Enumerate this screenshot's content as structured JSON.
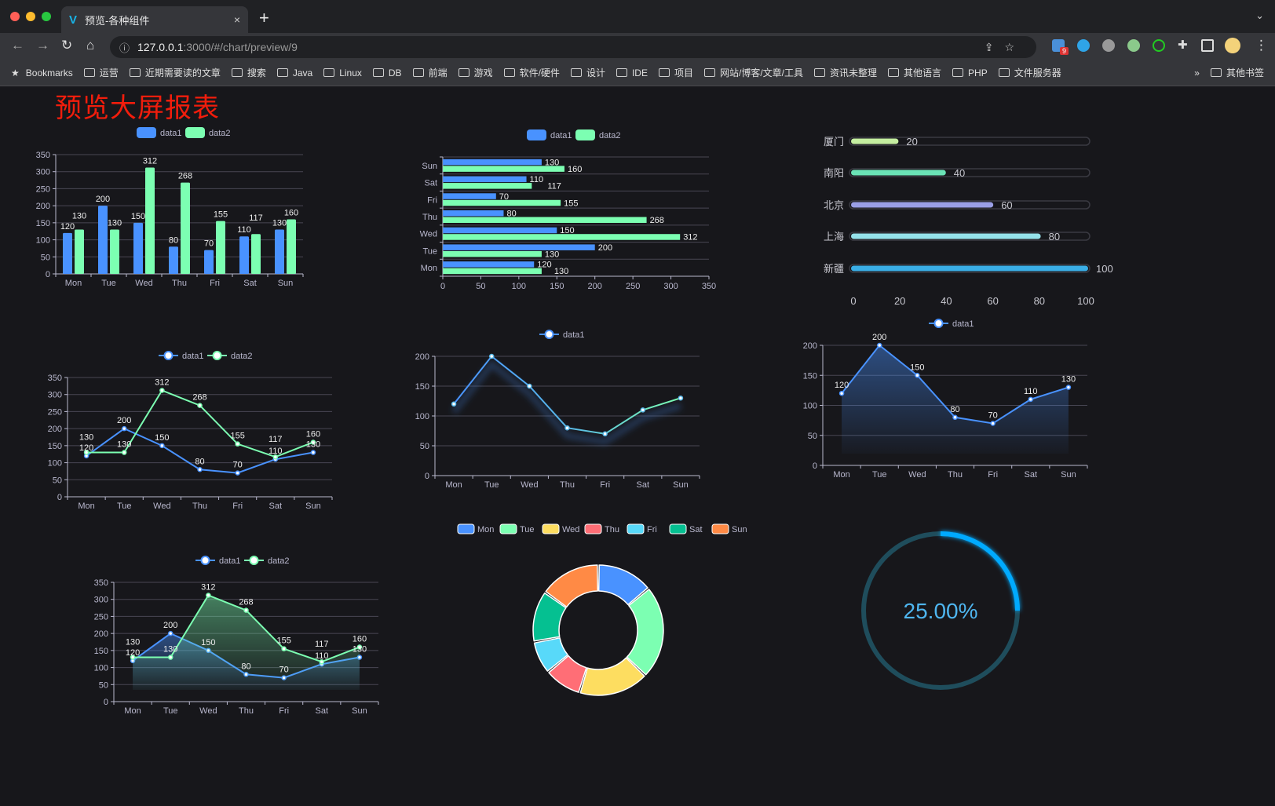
{
  "browser": {
    "tab_title": "预览-各种组件",
    "tab_close": "×",
    "new_tab": "+",
    "tab_menu": "⌄",
    "url_host": "127.0.0.1",
    "url_path": ":3000/#/chart/preview/9",
    "extension_badge": "9",
    "bookmarks_label": "Bookmarks",
    "bookmarks": [
      "运营",
      "近期需要读的文章",
      "搜索",
      "Java",
      "Linux",
      "DB",
      "前端",
      "游戏",
      "软件/硬件",
      "设计",
      "IDE",
      "项目",
      "网站/博客/文章/工具",
      "资讯未整理",
      "其他语言",
      "PHP",
      "文件服务器"
    ],
    "bookmarks_overflow": "»",
    "other_bookmarks": "其他书签"
  },
  "page": {
    "title": "预览大屏报表",
    "background": "#17171b"
  },
  "colors": {
    "data1": "#4992ff",
    "data2": "#7cffb2",
    "title": "#f21d0c",
    "gauge": "#00aaff"
  },
  "chart_data": [
    {
      "type": "bar",
      "orientation": "vertical",
      "legend": "top",
      "categories": [
        "Mon",
        "Tue",
        "Wed",
        "Thu",
        "Fri",
        "Sat",
        "Sun"
      ],
      "series": [
        {
          "name": "data1",
          "values": [
            120,
            200,
            150,
            80,
            70,
            110,
            130
          ]
        },
        {
          "name": "data2",
          "values": [
            130,
            130,
            312,
            268,
            155,
            117,
            160
          ]
        }
      ],
      "ylim": [
        0,
        350
      ],
      "yticks": [
        0,
        50,
        100,
        150,
        200,
        250,
        300,
        350
      ],
      "grid": true
    },
    {
      "type": "bar",
      "orientation": "horizontal",
      "legend": "top",
      "categories": [
        "Mon",
        "Tue",
        "Wed",
        "Thu",
        "Fri",
        "Sat",
        "Sun"
      ],
      "series": [
        {
          "name": "data1",
          "values": [
            120,
            200,
            150,
            80,
            70,
            110,
            130
          ]
        },
        {
          "name": "data2",
          "values": [
            130,
            130,
            312,
            268,
            155,
            117,
            160
          ]
        }
      ],
      "xlim": [
        0,
        350
      ],
      "xticks": [
        0,
        50,
        100,
        150,
        200,
        250,
        300,
        350
      ],
      "grid": true
    },
    {
      "type": "bar",
      "orientation": "horizontal",
      "style": "progress",
      "categories": [
        "厦门",
        "南阳",
        "北京",
        "上海",
        "新疆"
      ],
      "values": [
        20,
        40,
        60,
        80,
        100
      ],
      "colors": [
        "#c5eea0",
        "#6ae3b6",
        "#9a9fe6",
        "#95e2ea",
        "#3aaee6"
      ],
      "xlim": [
        0,
        100
      ],
      "xticks": [
        0,
        20,
        40,
        60,
        80,
        100
      ]
    },
    {
      "type": "line",
      "legend": "top",
      "categories": [
        "Mon",
        "Tue",
        "Wed",
        "Thu",
        "Fri",
        "Sat",
        "Sun"
      ],
      "series": [
        {
          "name": "data1",
          "values": [
            120,
            200,
            150,
            80,
            70,
            110,
            130
          ]
        },
        {
          "name": "data2",
          "values": [
            130,
            130,
            312,
            268,
            155,
            117,
            160
          ]
        }
      ],
      "ylim": [
        0,
        350
      ],
      "yticks": [
        0,
        50,
        100,
        150,
        200,
        250,
        300,
        350
      ],
      "grid": true
    },
    {
      "type": "line",
      "legend": "top",
      "categories": [
        "Mon",
        "Tue",
        "Wed",
        "Thu",
        "Fri",
        "Sat",
        "Sun"
      ],
      "series": [
        {
          "name": "data1",
          "values": [
            120,
            200,
            150,
            80,
            70,
            110,
            130
          ]
        }
      ],
      "ylim": [
        0,
        200
      ],
      "yticks": [
        0,
        50,
        100,
        150,
        200
      ],
      "grid": true
    },
    {
      "type": "area",
      "legend": "top",
      "categories": [
        "Mon",
        "Tue",
        "Wed",
        "Thu",
        "Fri",
        "Sat",
        "Sun"
      ],
      "series": [
        {
          "name": "data1",
          "values": [
            120,
            200,
            150,
            80,
            70,
            110,
            130
          ]
        }
      ],
      "ylim": [
        0,
        200
      ],
      "yticks": [
        0,
        50,
        100,
        150,
        200
      ],
      "grid": true
    },
    {
      "type": "area",
      "legend": "top",
      "categories": [
        "Mon",
        "Tue",
        "Wed",
        "Thu",
        "Fri",
        "Sat",
        "Sun"
      ],
      "series": [
        {
          "name": "data1",
          "values": [
            120,
            200,
            150,
            80,
            70,
            110,
            130
          ]
        },
        {
          "name": "data2",
          "values": [
            130,
            130,
            312,
            268,
            155,
            117,
            160
          ]
        }
      ],
      "ylim": [
        0,
        350
      ],
      "yticks": [
        0,
        50,
        100,
        150,
        200,
        250,
        300,
        350
      ],
      "grid": true
    },
    {
      "type": "pie",
      "donut": true,
      "legend": "top",
      "categories": [
        "Mon",
        "Tue",
        "Wed",
        "Thu",
        "Fri",
        "Sat",
        "Sun"
      ],
      "values": [
        120,
        200,
        150,
        80,
        70,
        110,
        130
      ],
      "colors": [
        "#4992ff",
        "#7cffb2",
        "#fddd60",
        "#ff6e76",
        "#58d9f9",
        "#05c091",
        "#ff8a45"
      ]
    },
    {
      "type": "gauge",
      "value": 25,
      "label": "25.00%"
    }
  ]
}
